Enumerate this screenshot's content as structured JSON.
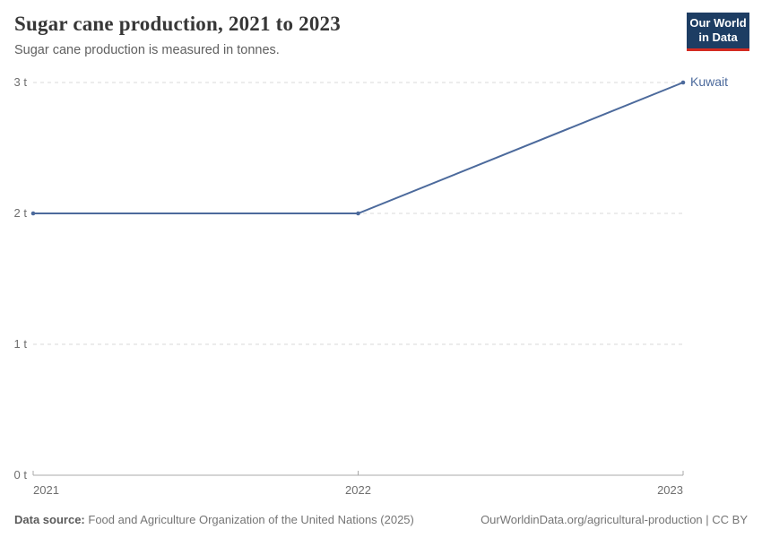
{
  "header": {
    "title": "Sugar cane production, 2021 to 2023",
    "subtitle": "Sugar cane production is measured in tonnes."
  },
  "logo": {
    "line1": "Our World",
    "line2": "in Data",
    "bg_color": "#1d3d63",
    "bar_color": "#d42b21"
  },
  "chart_data": {
    "type": "line",
    "title": "Sugar cane production, 2021 to 2023",
    "xlabel": "",
    "ylabel": "",
    "unit": "tonnes",
    "x": [
      2021,
      2022,
      2023
    ],
    "xtick_labels": [
      "2021",
      "2022",
      "2023"
    ],
    "xlim": [
      2021,
      2023
    ],
    "yticks": [
      0,
      1,
      2,
      3
    ],
    "ytick_labels": [
      "0 t",
      "1 t",
      "2 t",
      "3 t"
    ],
    "ylim": [
      0,
      3
    ],
    "grid": true,
    "legend_position": "end-of-line",
    "series": [
      {
        "name": "Kuwait",
        "values": [
          2,
          2,
          3
        ],
        "color": "#4C6A9C"
      }
    ]
  },
  "footer": {
    "source_label": "Data source:",
    "source_text": "Food and Agriculture Organization of the United Nations (2025)",
    "right_text": "OurWorldinData.org/agricultural-production | CC BY"
  }
}
